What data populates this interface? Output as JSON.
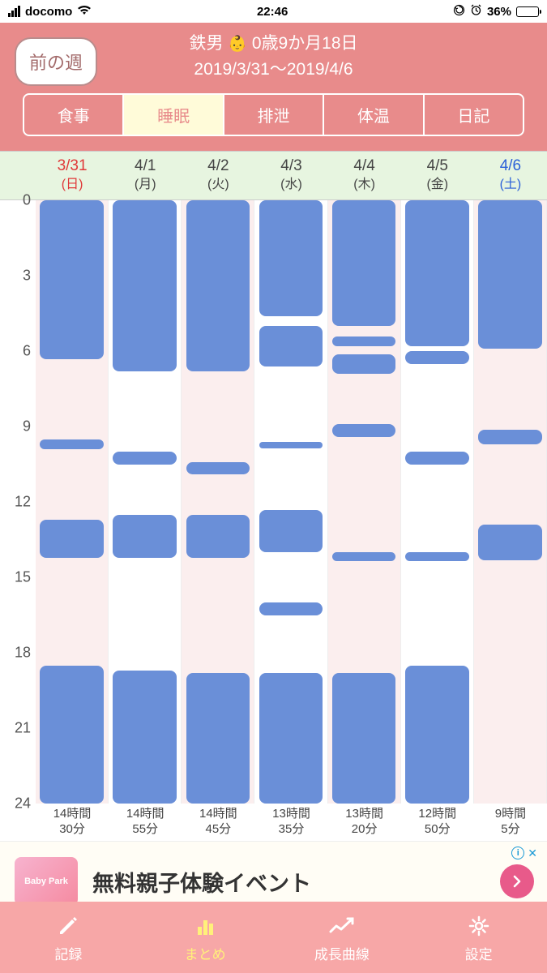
{
  "colors": {
    "header_bg": "#e88b8b",
    "bar_fill": "#6a8fd8",
    "odd_col_bg": "#fbeeee",
    "even_col_bg": "#ffffff",
    "day_header_bg": "#e7f5e0",
    "sunday_text": "#e03838",
    "saturday_text": "#2a60d8",
    "active_tab_bg": "#fffbd9",
    "nav_bg": "#f7a7a7",
    "nav_active": "#fff17a"
  },
  "status_bar": {
    "carrier": "docomo",
    "time": "22:46",
    "battery_pct": "36%",
    "battery_level": 36
  },
  "header": {
    "prev_week_label": "前の週",
    "baby_name": "鉄男",
    "baby_age": "0歳9か月18日",
    "date_range": "2019/3/31～2019/4/6"
  },
  "tabs": [
    {
      "label": "食事",
      "active": false
    },
    {
      "label": "睡眠",
      "active": true
    },
    {
      "label": "排泄",
      "active": false
    },
    {
      "label": "体温",
      "active": false
    },
    {
      "label": "日記",
      "active": false
    }
  ],
  "chart": {
    "type": "timeline-bar",
    "y_min": 0,
    "y_max": 24,
    "y_ticks": [
      0,
      3,
      6,
      9,
      12,
      15,
      18,
      21,
      24
    ],
    "grid_hours": [
      6,
      12,
      18
    ],
    "days": [
      {
        "date": "3/31",
        "dow": "(日)",
        "kind": "sun",
        "total_line1": "14時間",
        "total_line2": "30分",
        "bars": [
          {
            "start": 0,
            "end": 6.3
          },
          {
            "start": 9.5,
            "end": 9.9
          },
          {
            "start": 12.7,
            "end": 14.2
          },
          {
            "start": 18.5,
            "end": 24
          }
        ]
      },
      {
        "date": "4/1",
        "dow": "(月)",
        "kind": "",
        "total_line1": "14時間",
        "total_line2": "55分",
        "bars": [
          {
            "start": 0,
            "end": 6.8
          },
          {
            "start": 10.0,
            "end": 10.5
          },
          {
            "start": 12.5,
            "end": 14.2
          },
          {
            "start": 18.7,
            "end": 24
          }
        ]
      },
      {
        "date": "4/2",
        "dow": "(火)",
        "kind": "",
        "total_line1": "14時間",
        "total_line2": "45分",
        "bars": [
          {
            "start": 0,
            "end": 6.8
          },
          {
            "start": 10.4,
            "end": 10.9
          },
          {
            "start": 12.5,
            "end": 14.2
          },
          {
            "start": 18.8,
            "end": 24
          }
        ]
      },
      {
        "date": "4/3",
        "dow": "(水)",
        "kind": "",
        "total_line1": "13時間",
        "total_line2": "35分",
        "bars": [
          {
            "start": 0,
            "end": 4.6
          },
          {
            "start": 5.0,
            "end": 6.6
          },
          {
            "start": 9.6,
            "end": 9.85
          },
          {
            "start": 12.3,
            "end": 14.0
          },
          {
            "start": 16.0,
            "end": 16.5
          },
          {
            "start": 18.8,
            "end": 24
          }
        ]
      },
      {
        "date": "4/4",
        "dow": "(木)",
        "kind": "",
        "total_line1": "13時間",
        "total_line2": "20分",
        "bars": [
          {
            "start": 0,
            "end": 5.0
          },
          {
            "start": 5.4,
            "end": 5.8
          },
          {
            "start": 6.1,
            "end": 6.9
          },
          {
            "start": 8.9,
            "end": 9.4
          },
          {
            "start": 14.0,
            "end": 14.35
          },
          {
            "start": 18.8,
            "end": 24
          }
        ]
      },
      {
        "date": "4/5",
        "dow": "(金)",
        "kind": "",
        "total_line1": "12時間",
        "total_line2": "50分",
        "bars": [
          {
            "start": 0,
            "end": 5.8
          },
          {
            "start": 6.0,
            "end": 6.5
          },
          {
            "start": 10.0,
            "end": 10.5
          },
          {
            "start": 14.0,
            "end": 14.35
          },
          {
            "start": 18.5,
            "end": 24
          }
        ]
      },
      {
        "date": "4/6",
        "dow": "(土)",
        "kind": "sat",
        "total_line1": "9時間",
        "total_line2": "5分",
        "bars": [
          {
            "start": 0,
            "end": 5.9
          },
          {
            "start": 9.1,
            "end": 9.7
          },
          {
            "start": 12.9,
            "end": 14.3
          }
        ]
      }
    ]
  },
  "ad": {
    "logo_text": "Baby Park",
    "text": "無料親子体験イベント",
    "close_label": "✕"
  },
  "bottom_nav": [
    {
      "label": "記録",
      "icon": "pencil",
      "active": false
    },
    {
      "label": "まとめ",
      "icon": "bars",
      "active": true
    },
    {
      "label": "成長曲線",
      "icon": "trend",
      "active": false
    },
    {
      "label": "設定",
      "icon": "gear",
      "active": false
    }
  ]
}
